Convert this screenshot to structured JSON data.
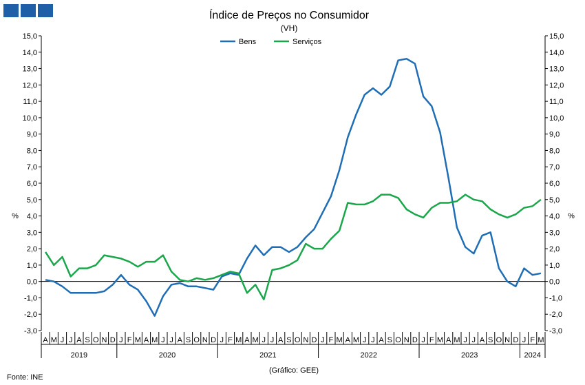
{
  "chart_data": {
    "type": "line",
    "title": "Índice de Preços no Consumidor",
    "subtitle": "(VH)",
    "ylabel_left": "%",
    "ylabel_right": "%",
    "ylim": [
      -3.0,
      15.0
    ],
    "yticks": [
      "-3,0",
      "-2,0",
      "-1,0",
      "0,0",
      "1,0",
      "2,0",
      "3,0",
      "4,0",
      "5,0",
      "6,0",
      "7,0",
      "8,0",
      "9,0",
      "10,0",
      "11,0",
      "12,0",
      "13,0",
      "14,0",
      "15,0"
    ],
    "months": [
      "A",
      "M",
      "J",
      "J",
      "A",
      "S",
      "O",
      "N",
      "D",
      "J",
      "F",
      "M",
      "A",
      "M",
      "J",
      "J",
      "A",
      "S",
      "O",
      "N",
      "D",
      "J",
      "F",
      "M",
      "A",
      "M",
      "J",
      "J",
      "A",
      "S",
      "O",
      "N",
      "D",
      "J",
      "F",
      "M",
      "A",
      "M",
      "J",
      "J",
      "A",
      "S",
      "O",
      "N",
      "D",
      "J",
      "F",
      "M",
      "A",
      "M",
      "J",
      "J",
      "A",
      "S",
      "O",
      "N",
      "D",
      "J",
      "F",
      "M"
    ],
    "years": [
      {
        "label": "2019",
        "start": 0,
        "count": 9
      },
      {
        "label": "2020",
        "start": 9,
        "count": 12
      },
      {
        "label": "2021",
        "start": 21,
        "count": 12
      },
      {
        "label": "2022",
        "start": 33,
        "count": 12
      },
      {
        "label": "2023",
        "start": 45,
        "count": 12
      },
      {
        "label": "2024",
        "start": 57,
        "count": 3
      }
    ],
    "series": [
      {
        "name": "Bens",
        "color": "#1f6db5",
        "values": [
          0.1,
          0.0,
          -0.3,
          -0.7,
          -0.7,
          -0.7,
          -0.7,
          -0.6,
          -0.2,
          0.4,
          -0.2,
          -0.5,
          -1.2,
          -2.1,
          -0.9,
          -0.2,
          -0.1,
          -0.3,
          -0.3,
          -0.4,
          -0.5,
          0.3,
          0.5,
          0.4,
          1.4,
          2.2,
          1.6,
          2.1,
          2.1,
          1.8,
          2.1,
          2.7,
          3.2,
          4.2,
          5.2,
          6.8,
          8.8,
          10.2,
          11.4,
          11.8,
          11.4,
          11.9,
          13.5,
          13.6,
          13.3,
          11.3,
          10.7,
          9.1,
          6.3,
          3.3,
          2.1,
          1.7,
          2.8,
          3.0,
          0.8,
          0.0,
          -0.3,
          0.8,
          0.4,
          0.5
        ]
      },
      {
        "name": "Serviços",
        "color": "#1aa64a",
        "values": [
          1.8,
          1.0,
          1.5,
          0.3,
          0.8,
          0.8,
          1.0,
          1.6,
          1.5,
          1.4,
          1.2,
          0.9,
          1.2,
          1.2,
          1.6,
          0.6,
          0.1,
          0.0,
          0.2,
          0.1,
          0.2,
          0.4,
          0.6,
          0.5,
          -0.7,
          -0.2,
          -1.1,
          0.7,
          0.8,
          1.0,
          1.3,
          2.3,
          2.0,
          2.0,
          2.6,
          3.1,
          4.8,
          4.7,
          4.7,
          4.9,
          5.3,
          5.3,
          5.1,
          4.4,
          4.1,
          3.9,
          4.5,
          4.8,
          4.8,
          4.9,
          5.3,
          5.0,
          4.9,
          4.4,
          4.1,
          3.9,
          4.1,
          4.5,
          4.6,
          5.0
        ]
      }
    ]
  },
  "source": "Fonte: INE",
  "credit": "(Gráfico: GEE)"
}
